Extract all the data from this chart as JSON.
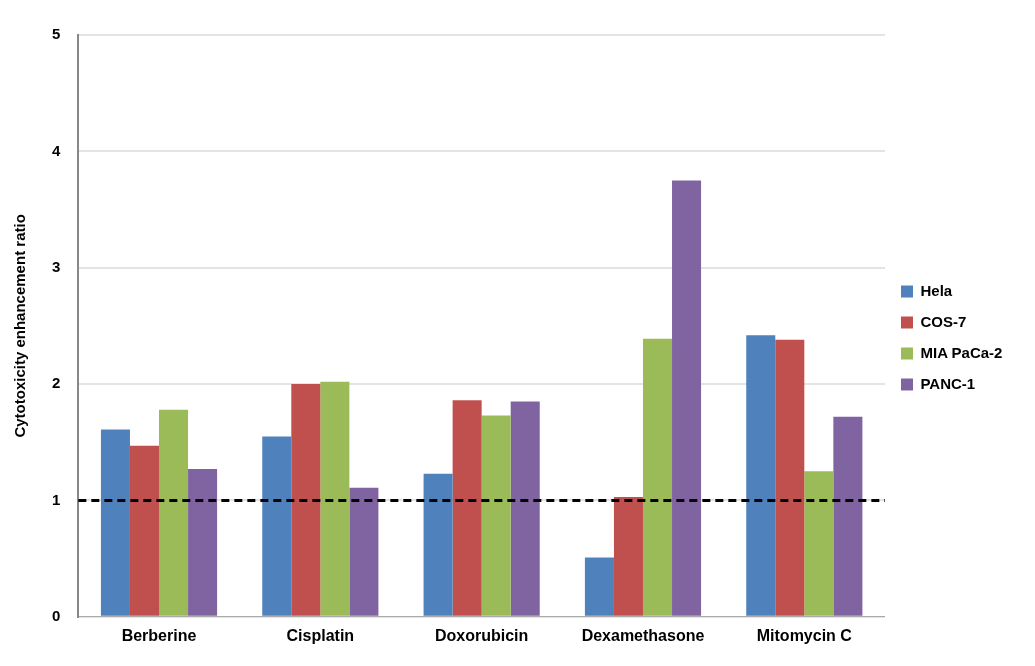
{
  "chart_data": {
    "type": "bar",
    "ylabel": "Cytotoxicity enhancement ratio",
    "categories": [
      "Berberine",
      "Cisplatin",
      "Doxorubicin",
      "Dexamethasone",
      "Mitomycin C"
    ],
    "series": [
      {
        "name": "Hela",
        "color": "#4f81bd",
        "values": [
          1.61,
          1.55,
          1.23,
          0.51,
          2.42
        ]
      },
      {
        "name": "COS-7",
        "color": "#c0504d",
        "values": [
          1.47,
          2.0,
          1.86,
          1.03,
          2.38
        ]
      },
      {
        "name": "MIA PaCa-2",
        "color": "#9bbb59",
        "values": [
          1.78,
          2.02,
          1.73,
          2.39,
          1.25
        ]
      },
      {
        "name": "PANC-1",
        "color": "#8064a2",
        "values": [
          1.27,
          1.11,
          1.85,
          3.75,
          1.72
        ]
      }
    ],
    "ylim": [
      0,
      5
    ],
    "yticks": [
      0,
      1,
      2,
      3,
      4,
      5
    ],
    "grid": "y",
    "legend": "right",
    "ref_lines": [
      {
        "axis": "y",
        "value": 1,
        "color": "#000000",
        "line_style": "dashed"
      }
    ]
  }
}
